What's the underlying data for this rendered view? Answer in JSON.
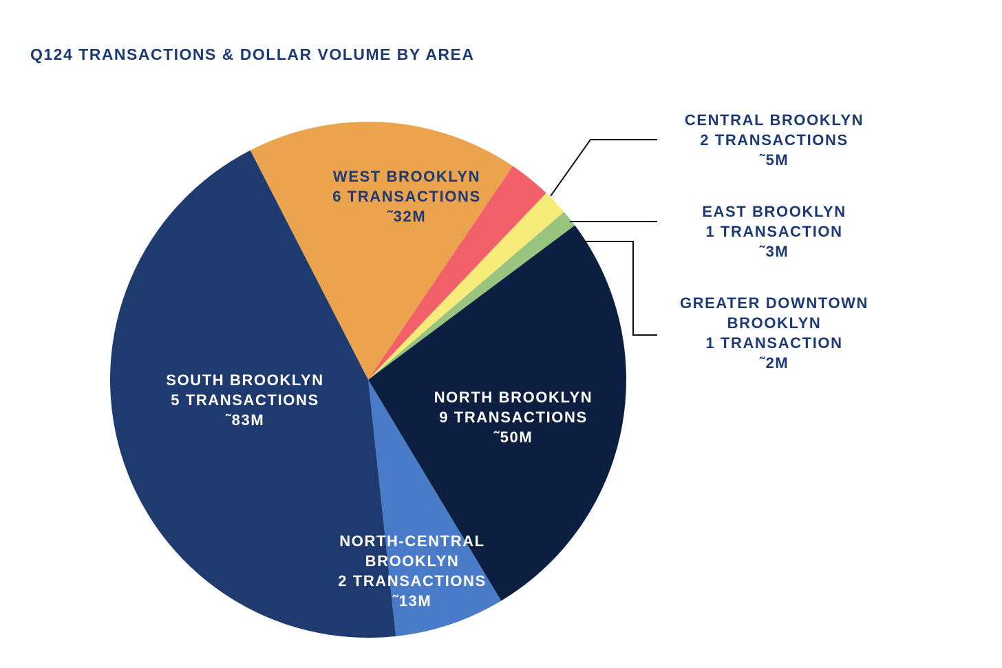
{
  "chart_data": {
    "type": "pie",
    "title": "Q124 TRANSACTIONS & DOLLAR VOLUME BY AREA",
    "value_unit": "dollar volume ($M, approximate)",
    "start_angle_deg": -27.2,
    "direction": "clockwise",
    "slices": [
      {
        "key": "west",
        "name": "WEST BROOKLYN",
        "transactions": 6,
        "value": 32,
        "color": "#eba44d",
        "label_color": "#1e3a75",
        "label_lines": [
          "WEST BROOKLYN",
          "6 TRANSACTIONS",
          "˜32M"
        ]
      },
      {
        "key": "central",
        "name": "CENTRAL BROOKLYN",
        "transactions": 2,
        "value": 5,
        "color": "#f2606a",
        "label_color": "#1e3a75",
        "label_lines": [
          "CENTRAL BROOKLYN",
          "2 TRANSACTIONS",
          "˜5M"
        ]
      },
      {
        "key": "east",
        "name": "EAST BROOKLYN",
        "transactions": 1,
        "value": 3,
        "color": "#f7eb7a",
        "label_color": "#1e3a75",
        "label_lines": [
          "EAST BROOKLYN",
          "1 TRANSACTION",
          "˜3M"
        ]
      },
      {
        "key": "greater_downtown",
        "name": "GREATER DOWNTOWN BROOKLYN",
        "transactions": 1,
        "value": 2,
        "color": "#99c47f",
        "label_color": "#1e3a75",
        "label_lines": [
          "GREATER DOWNTOWN",
          "BROOKLYN",
          "1 TRANSACTION",
          "˜2M"
        ]
      },
      {
        "key": "north",
        "name": "NORTH BROOKLYN",
        "transactions": 9,
        "value": 50,
        "color": "#0c1f40",
        "label_color": "#ffffff",
        "label_lines": [
          "NORTH BROOKLYN",
          "9 TRANSACTIONS",
          "˜50M"
        ]
      },
      {
        "key": "north_central",
        "name": "NORTH-CENTRAL BROOKLYN",
        "transactions": 2,
        "value": 13,
        "color": "#4a7bc8",
        "label_color": "#ffffff",
        "label_lines": [
          "NORTH-CENTRAL",
          "BROOKLYN",
          "2 TRANSACTIONS",
          "˜13M"
        ]
      },
      {
        "key": "south",
        "name": "SOUTH BROOKLYN",
        "transactions": 5,
        "value": 83,
        "color": "#1f3a6e",
        "label_color": "#ffffff",
        "label_lines": [
          "SOUTH BROOKLYN",
          "5 TRANSACTIONS",
          "˜83M"
        ]
      }
    ],
    "external_labels": [
      "central",
      "east",
      "greater_downtown"
    ]
  }
}
